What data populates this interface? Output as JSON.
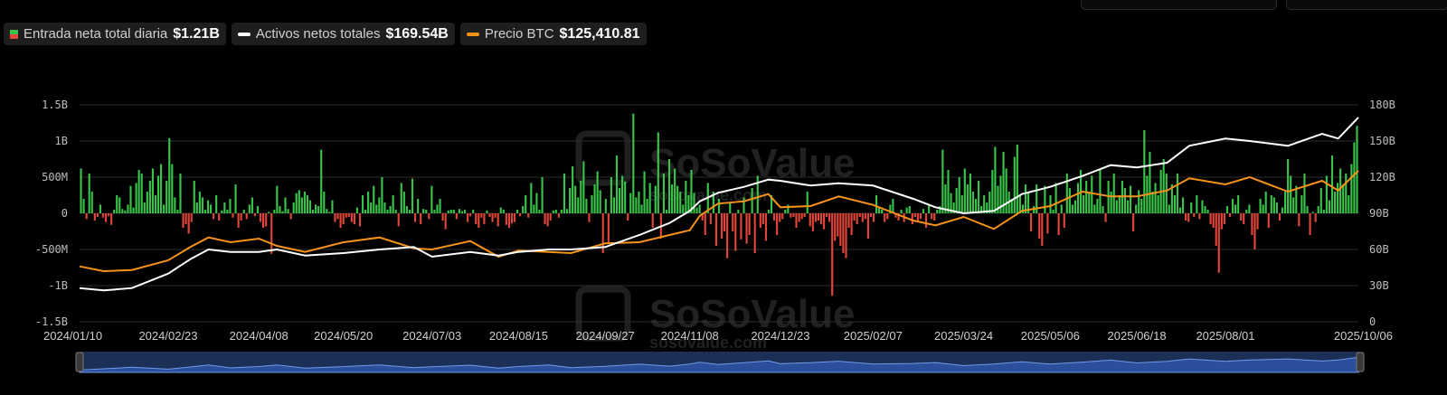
{
  "legend": [
    {
      "label": "Entrada neta total diaria",
      "value": "$1.21B",
      "swatch": "flow"
    },
    {
      "label": "Activos netos totales",
      "value": "$169.54B",
      "swatch": "#ffffff"
    },
    {
      "label": "Precio BTC",
      "value": "$125,410.81",
      "swatch": "#f7931a"
    }
  ],
  "watermark": {
    "brand": "SoSoValue",
    "url": "sosovalue.com"
  },
  "colors": {
    "inflow": "#3ac34a",
    "outflow": "#e2463b",
    "assets_line": "#ffffff",
    "btc_line": "#f7931a",
    "navigator_fill": "#2b4f9a",
    "navigator_line": "#6f9be8"
  },
  "chart_data": {
    "type": "bar+line",
    "x_ticks": [
      "2024/01/10",
      "2024/02/23",
      "2024/04/08",
      "2024/05/20",
      "2024/07/03",
      "2024/08/15",
      "2024/09/27",
      "2024/11/08",
      "2024/12/23",
      "2025/02/07",
      "2025/03/24",
      "2025/05/06",
      "2025/06/18",
      "2025/08/01",
      "2025/10/06"
    ],
    "left_axis": {
      "ticks": [
        "1.5B",
        "1B",
        "500M",
        "0",
        "-500M",
        "-1B",
        "-1.5B"
      ],
      "range": [
        -1.5,
        1.5
      ],
      "unit": "B USD"
    },
    "right_axis": {
      "ticks": [
        "180B",
        "150B",
        "120B",
        "90B",
        "60B",
        "30B",
        "0"
      ],
      "range": [
        0,
        180
      ],
      "unit": "B USD"
    },
    "grid": true,
    "series": [
      {
        "name": "Entrada neta total diaria",
        "kind": "bar",
        "unit": "B USD",
        "values": [
          0.62,
          0.2,
          -0.08,
          0.55,
          0.3,
          -0.1,
          -0.05,
          0.12,
          -0.06,
          -0.12,
          -0.04,
          -0.16,
          0.05,
          0.25,
          0.22,
          0.06,
          0.04,
          0.12,
          0.38,
          0.08,
          0.42,
          0.6,
          0.55,
          0.15,
          0.3,
          0.45,
          0.62,
          0.25,
          0.52,
          0.68,
          0.12,
          0.45,
          1.04,
          0.68,
          0.22,
          0.05,
          0.55,
          -0.2,
          -0.15,
          -0.28,
          -0.12,
          0.45,
          0.15,
          0.3,
          0.22,
          0.05,
          0.18,
          0.12,
          -0.08,
          0.25,
          -0.1,
          0.04,
          0.15,
          0.05,
          0.2,
          -0.06,
          0.4,
          -0.2,
          -0.1,
          0.05,
          -0.08,
          0.12,
          0.22,
          -0.04,
          0.1,
          -0.12,
          -0.2,
          -0.18,
          0.02,
          -0.56,
          0.05,
          0.38,
          0.1,
          0.03,
          0.22,
          0.06,
          -0.08,
          0.15,
          0.28,
          0.32,
          0.22,
          0.3,
          0.25,
          0.18,
          0.05,
          0.12,
          0.1,
          0.88,
          0.3,
          0.06,
          0.02,
          0.18,
          -0.12,
          -0.08,
          -0.2,
          -0.15,
          -0.06,
          -0.05,
          -0.12,
          -0.15,
          0.08,
          -0.18,
          0.25,
          0.05,
          0.3,
          0.15,
          0.38,
          0.12,
          0.22,
          0.5,
          0.15,
          0.05,
          0.1,
          0.25,
          0.05,
          -0.18,
          0.42,
          0.3,
          0.1,
          0.05,
          0.48,
          -0.12,
          0.2,
          -0.15,
          0.06,
          0.05,
          -0.08,
          0.38,
          0.05,
          0.12,
          0.2,
          -0.1,
          -0.22,
          0.04,
          0.05,
          0.05,
          -0.08,
          0.06,
          0.03,
          0.05,
          -0.12,
          -0.04,
          0.05,
          -0.15,
          -0.2,
          -0.06,
          -0.15,
          0.04,
          -0.05,
          -0.12,
          -0.06,
          -0.18,
          0.08,
          0.05,
          -0.16,
          -0.2,
          -0.14,
          -0.12,
          0.05,
          -0.04,
          0.1,
          0.25,
          -0.06,
          0.42,
          0.12,
          0.28,
          0.05,
          0.5,
          -0.15,
          -0.18,
          -0.1,
          0.04,
          0.05,
          -0.06,
          0.05,
          0.55,
          0.06,
          0.35,
          0.65,
          0.38,
          0.22,
          0.45,
          0.72,
          0.2,
          -0.12,
          0.25,
          0.4,
          0.58,
          0.32,
          -0.55,
          0.2,
          -0.4,
          0.5,
          0.22,
          0.8,
          0.35,
          0.52,
          0.44,
          -0.1,
          0.28,
          1.38,
          0.22,
          0.3,
          0.12,
          0.58,
          0.2,
          0.42,
          -0.2,
          0.38,
          1.12,
          -0.35,
          0.55,
          0.05,
          0.75,
          0.4,
          0.62,
          0.38,
          0.3,
          0.12,
          0.45,
          0.25,
          0.6,
          0.28,
          0.08,
          0.12,
          -0.1,
          -0.3,
          0.42,
          -0.15,
          0.3,
          -0.45,
          0.2,
          -0.35,
          -0.25,
          -0.62,
          0.15,
          -0.25,
          -0.52,
          0.05,
          -0.36,
          0.22,
          -0.42,
          -0.3,
          0.35,
          -0.55,
          0.52,
          -0.2,
          -0.15,
          -0.38,
          0.05,
          0.25,
          -0.1,
          -0.3,
          -0.12,
          -0.08,
          0.05,
          0.12,
          -0.06,
          -0.05,
          -0.2,
          -0.12,
          -0.08,
          -0.05,
          0.3,
          -0.18,
          -0.25,
          -0.12,
          -0.1,
          -0.15,
          -0.22,
          -0.05,
          -0.12,
          -1.14,
          -0.38,
          -0.32,
          -0.45,
          -0.55,
          -0.62,
          -0.2,
          -0.3,
          -0.1,
          -0.15,
          -0.05,
          -0.12,
          -0.08,
          -0.35,
          -0.05,
          -0.12,
          0.25,
          0.08,
          0.05,
          -0.12,
          -0.08,
          0.12,
          0.2,
          -0.06,
          -0.1,
          0.05,
          -0.12,
          0.08,
          0.1,
          -0.15,
          -0.05,
          -0.12,
          -0.08,
          0.06,
          -0.2,
          0.12,
          -0.08,
          -0.1,
          0.05,
          0.1,
          0.88,
          0.4,
          0.6,
          0.28,
          0.15,
          0.35,
          0.5,
          0.25,
          0.62,
          0.4,
          0.55,
          0.3,
          0.2,
          0.45,
          0.1,
          0.25,
          0.15,
          0.3,
          0.6,
          0.92,
          0.38,
          0.52,
          0.85,
          0.62,
          0.3,
          0.2,
          0.78,
          0.95,
          0.25,
          0.12,
          0.4,
          0.3,
          -0.25,
          0.1,
          0.4,
          -0.35,
          -0.45,
          0.38,
          -0.28,
          0.25,
          0.05,
          0.42,
          -0.3,
          0.12,
          -0.2,
          0.55,
          0.35,
          0.12,
          0.18,
          0.42,
          0.6,
          0.25,
          0.45,
          0.3,
          0.52,
          0.12,
          0.2,
          0.6,
          0.1,
          -0.12,
          0.45,
          0.3,
          0.55,
          0.18,
          0.25,
          0.45,
          0.35,
          0.18,
          0.38,
          -0.25,
          0.12,
          0.32,
          0.2,
          1.15,
          0.52,
          0.85,
          0.3,
          0.42,
          0.25,
          0.6,
          0.75,
          0.55,
          0.12,
          0.4,
          0.25,
          0.55,
          0.08,
          0.22,
          -0.1,
          -0.12,
          0.15,
          -0.05,
          0.25,
          -0.08,
          0.18,
          0.1,
          0.05,
          -0.15,
          -0.2,
          -0.45,
          -0.82,
          -0.22,
          -0.15,
          0.1,
          -0.05,
          0.2,
          0.12,
          0.25,
          -0.1,
          -0.15,
          0.05,
          0.12,
          -0.3,
          -0.5,
          -0.22,
          0.2,
          0.12,
          0.3,
          -0.2,
          0.25,
          0.22,
          0.15,
          -0.1,
          0.08,
          0.3,
          0.75,
          0.52,
          0.22,
          0.38,
          -0.18,
          0.25,
          0.55,
          0.1,
          -0.3,
          0.02,
          -0.12,
          0.1,
          0.35,
          0.05,
          0.52,
          0.18,
          0.8,
          0.3,
          0.42,
          0.62,
          0.4,
          0.55,
          0.25,
          0.68,
          0.98,
          1.21
        ]
      },
      {
        "name": "Activos netos totales",
        "kind": "line",
        "axis": "right",
        "unit": "B USD",
        "x": [
          "2024/01/10",
          "2024/01/22",
          "2024/02/05",
          "2024/02/23",
          "2024/03/05",
          "2024/03/14",
          "2024/03/25",
          "2024/04/08",
          "2024/04/17",
          "2024/05/01",
          "2024/05/20",
          "2024/06/07",
          "2024/06/24",
          "2024/07/03",
          "2024/07/22",
          "2024/08/05",
          "2024/08/15",
          "2024/08/30",
          "2024/09/10",
          "2024/09/27",
          "2024/10/14",
          "2024/10/29",
          "2024/11/08",
          "2024/11/13",
          "2024/11/22",
          "2024/12/05",
          "2024/12/17",
          "2024/12/23",
          "2025/01/07",
          "2025/01/21",
          "2025/02/07",
          "2025/02/27",
          "2025/03/10",
          "2025/03/24",
          "2025/04/08",
          "2025/04/22",
          "2025/05/06",
          "2025/05/22",
          "2025/06/05",
          "2025/06/18",
          "2025/07/03",
          "2025/07/14",
          "2025/08/01",
          "2025/08/13",
          "2025/09/01",
          "2025/09/18",
          "2025/09/26",
          "2025/10/06"
        ],
        "values": [
          28,
          26,
          28,
          40,
          52,
          60,
          58,
          58,
          60,
          55,
          57,
          60,
          62,
          54,
          58,
          55,
          58,
          60,
          60,
          62,
          72,
          82,
          92,
          100,
          107,
          112,
          118,
          117,
          113,
          115,
          113,
          102,
          95,
          90,
          92,
          106,
          112,
          121,
          130,
          128,
          132,
          146,
          152,
          150,
          146,
          156,
          152,
          169.54
        ]
      },
      {
        "name": "Precio BTC",
        "kind": "line",
        "axis": "right",
        "unit": "USD",
        "x": [
          "2024/01/10",
          "2024/01/22",
          "2024/02/05",
          "2024/02/23",
          "2024/03/05",
          "2024/03/14",
          "2024/03/25",
          "2024/04/08",
          "2024/04/17",
          "2024/05/01",
          "2024/05/20",
          "2024/06/07",
          "2024/06/24",
          "2024/07/03",
          "2024/07/22",
          "2024/08/05",
          "2024/08/15",
          "2024/08/30",
          "2024/09/10",
          "2024/09/27",
          "2024/10/14",
          "2024/10/29",
          "2024/11/08",
          "2024/11/13",
          "2024/11/22",
          "2024/12/05",
          "2024/12/17",
          "2024/12/23",
          "2025/01/07",
          "2025/01/21",
          "2025/02/07",
          "2025/02/27",
          "2025/03/10",
          "2025/03/24",
          "2025/04/08",
          "2025/04/22",
          "2025/05/06",
          "2025/05/22",
          "2025/06/05",
          "2025/06/18",
          "2025/07/03",
          "2025/07/14",
          "2025/08/01",
          "2025/08/13",
          "2025/09/01",
          "2025/09/18",
          "2025/09/26",
          "2025/10/06"
        ],
        "values": [
          46000,
          42000,
          43000,
          51000,
          62000,
          70000,
          66000,
          69000,
          63000,
          58000,
          66000,
          70000,
          61000,
          60000,
          67000,
          54000,
          59000,
          58000,
          57000,
          65000,
          66000,
          72000,
          76000,
          88000,
          98000,
          100000,
          106000,
          95000,
          96000,
          104000,
          97000,
          84000,
          80000,
          87000,
          77000,
          92000,
          96000,
          108000,
          104000,
          104000,
          109000,
          119000,
          114000,
          120000,
          108000,
          117000,
          109000,
          125410.81
        ]
      }
    ]
  }
}
